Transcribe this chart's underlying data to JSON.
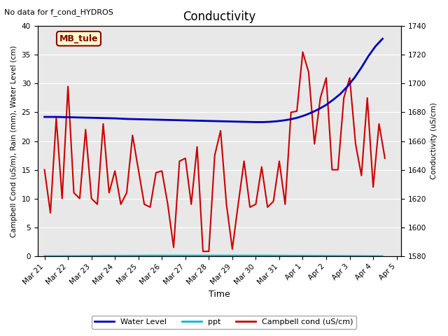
{
  "title": "Conductivity",
  "top_left_text": "No data for f_cond_HYDROS",
  "ylabel_left": "Campbell Cond (uS/m), Rain (mm), Water Level (cm)",
  "ylabel_right": "Conductivity (uS/cm)",
  "xlabel": "Time",
  "ylim_left": [
    0,
    40
  ],
  "ylim_right": [
    1580,
    1740
  ],
  "background_color": "#e8e8e8",
  "plot_bg_color": "#e8e8e8",
  "legend_box_label": "MB_tule",
  "legend_box_color": "#ffffcc",
  "legend_box_border": "#8b0000",
  "water_level_color": "#0000bb",
  "ppt_color": "#00bbcc",
  "campbell_color": "#cc0000",
  "water_level_data": {
    "x": [
      0.0,
      0.5,
      1.0,
      1.5,
      2.0,
      2.5,
      3.0,
      3.5,
      4.0,
      4.5,
      5.0,
      5.5,
      6.0,
      6.5,
      7.0,
      7.5,
      8.0,
      8.5,
      9.0,
      9.3,
      9.6,
      9.9,
      10.2,
      10.5,
      10.8,
      11.1,
      11.4,
      11.7,
      12.0,
      12.3,
      12.6,
      12.9,
      13.2,
      13.5,
      13.8,
      14.1,
      14.4
    ],
    "values": [
      24.2,
      24.2,
      24.15,
      24.1,
      24.05,
      24.0,
      23.95,
      23.85,
      23.8,
      23.75,
      23.7,
      23.65,
      23.6,
      23.55,
      23.5,
      23.45,
      23.4,
      23.35,
      23.3,
      23.3,
      23.35,
      23.45,
      23.6,
      23.8,
      24.1,
      24.5,
      25.0,
      25.6,
      26.3,
      27.2,
      28.2,
      29.5,
      31.0,
      32.8,
      34.8,
      36.5,
      37.8
    ]
  },
  "campbell_data": {
    "x": [
      0.0,
      0.25,
      0.5,
      0.75,
      1.0,
      1.25,
      1.5,
      1.75,
      2.0,
      2.25,
      2.5,
      2.75,
      3.0,
      3.25,
      3.5,
      3.75,
      4.0,
      4.25,
      4.5,
      4.75,
      5.0,
      5.25,
      5.5,
      5.75,
      6.0,
      6.25,
      6.5,
      6.75,
      7.0,
      7.25,
      7.5,
      7.75,
      8.0,
      8.25,
      8.5,
      8.75,
      9.0,
      9.25,
      9.5,
      9.75,
      10.0,
      10.25,
      10.5,
      10.75,
      11.0,
      11.25,
      11.5,
      11.75,
      12.0,
      12.25,
      12.5,
      12.75,
      13.0,
      13.25,
      13.5,
      13.75,
      14.0,
      14.25,
      14.5
    ],
    "values": [
      15.0,
      7.5,
      24.0,
      10.0,
      29.5,
      11.0,
      10.0,
      22.0,
      10.0,
      9.0,
      23.0,
      11.0,
      14.8,
      9.0,
      11.0,
      21.0,
      15.0,
      9.0,
      8.5,
      14.5,
      14.8,
      9.0,
      1.5,
      16.5,
      17.0,
      9.0,
      19.0,
      0.8,
      0.8,
      17.5,
      21.8,
      9.0,
      1.2,
      9.0,
      16.5,
      8.5,
      9.0,
      15.5,
      8.5,
      9.5,
      16.5,
      9.0,
      25.0,
      25.2,
      35.5,
      32.0,
      19.5,
      27.5,
      31.0,
      15.0,
      15.0,
      27.5,
      31.0,
      19.5,
      14.0,
      27.5,
      12.0,
      23.0,
      17.0
    ]
  },
  "ppt_data": {
    "x": [
      0,
      0.5,
      4.5,
      7.5,
      9.5,
      14.4
    ],
    "values": [
      0.0,
      0.0,
      0.1,
      0.1,
      0.1,
      0.0
    ]
  },
  "xtick_labels": [
    "Mar 21",
    "Mar 22",
    "Mar 23",
    "Mar 24",
    "Mar 25",
    "Mar 26",
    "Mar 27",
    "Mar 28",
    "Mar 29",
    "Mar 30",
    "Mar 31",
    "Apr 1",
    "Apr 2",
    "Apr 3",
    "Apr 4",
    "Apr 5"
  ],
  "xtick_positions": [
    0,
    1,
    2,
    3,
    4,
    5,
    6,
    7,
    8,
    9,
    10,
    11,
    12,
    13,
    14,
    15
  ],
  "yticks_left": [
    0,
    5,
    10,
    15,
    20,
    25,
    30,
    35,
    40
  ],
  "yticks_right": [
    1580,
    1600,
    1620,
    1640,
    1660,
    1680,
    1700,
    1720,
    1740
  ],
  "xlim": [
    -0.3,
    15.2
  ]
}
